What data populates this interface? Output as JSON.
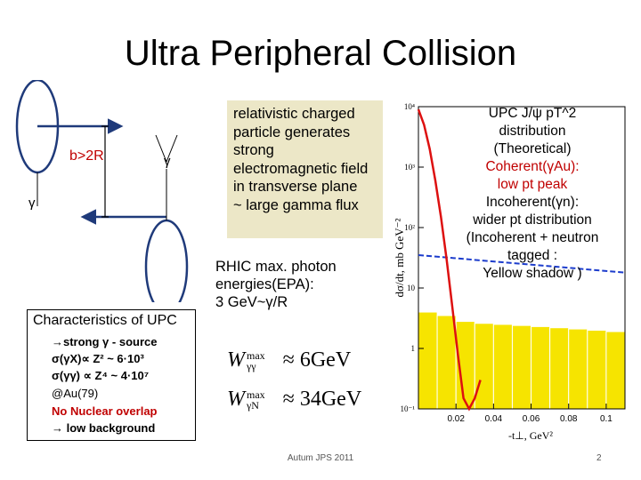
{
  "title": "Ultra Peripheral Collision",
  "diagram": {
    "impact_label": "b>2R",
    "gamma_left": "γ",
    "gamma_right": "γ"
  },
  "description": {
    "lines": [
      "relativistic charged",
      "particle generates",
      "strong",
      "electromagnetic field",
      "in  transverse plane",
      "~ large gamma flux"
    ]
  },
  "rhic": {
    "lines": [
      "RHIC max. photon",
      "energies(EPA):",
      "3 GeV~γ/R"
    ]
  },
  "characteristics": {
    "title": "Characteristics of  UPC",
    "lines": [
      "→strong γ - source",
      "σ(γX)∝ Z² ~ 6·10³",
      "σ(γγ) ∝ Z⁴ ~ 4·10⁷",
      "@Au(79)"
    ],
    "red_lines": [
      "No Nuclear overlap",
      "→   low background"
    ]
  },
  "formulas": {
    "w_gg_sup": "max",
    "w_gg_sub": "γγ",
    "w_gg_value": "≈ 6GeV",
    "w_gn_sup": "max",
    "w_gn_sub": "γN",
    "w_gn_value": "≈ 34GeV"
  },
  "plot_annotation": {
    "black_lines": [
      "UPC J/ψ pT^2",
      "distribution",
      "(Theoretical)"
    ],
    "red_lines": [
      "Coherent(γAu):",
      " low pt peak"
    ],
    "black_lines_2": [
      "Incoherent(γn):",
      " wider pt distribution",
      "(Incoherent + neutron",
      "tagged :",
      "Yellow shadow )"
    ]
  },
  "chart_data": {
    "type": "line",
    "xlabel": "-t⊥, GeV²",
    "ylabel": "dσ/dt, mb GeV⁻²",
    "x_ticks": [
      "0.02",
      "0.04",
      "0.06",
      "0.08",
      "0.1"
    ],
    "x_tick_values": [
      0.02,
      0.04,
      0.06,
      0.08,
      0.1
    ],
    "y_ticks": [
      "10⁻¹",
      "1",
      "10",
      "10²",
      "10³",
      "10⁴"
    ],
    "y_tick_values": [
      0.1,
      1,
      10,
      100,
      1000,
      10000
    ],
    "xlim": [
      0,
      0.11
    ],
    "ylim_log10": [
      -1,
      4
    ],
    "coherent": {
      "x": [
        0.0,
        0.003,
        0.006,
        0.009,
        0.012,
        0.015,
        0.018,
        0.021,
        0.024,
        0.027,
        0.03,
        0.033
      ],
      "y": [
        9000,
        5000,
        2000,
        600,
        150,
        30,
        5,
        0.8,
        0.15,
        0.1,
        0.15,
        0.3
      ]
    },
    "incoherent": {
      "x": [
        0.0,
        0.11
      ],
      "y": [
        35,
        18
      ]
    },
    "hist_bins_x": [
      0.0,
      0.01,
      0.02,
      0.03,
      0.04,
      0.05,
      0.06,
      0.07,
      0.08,
      0.09,
      0.1,
      0.11
    ],
    "hist_heights": [
      4,
      3.5,
      2.8,
      2.6,
      2.5,
      2.4,
      2.3,
      2.2,
      2.1,
      2.0,
      1.9
    ],
    "colors": {
      "coherent": "#dd1010",
      "incoherent": "#1c3ccc",
      "histogram": "#f6e400",
      "text_red": "#c00000"
    }
  },
  "footer": "Autum JPS 2011",
  "page_number": "2"
}
